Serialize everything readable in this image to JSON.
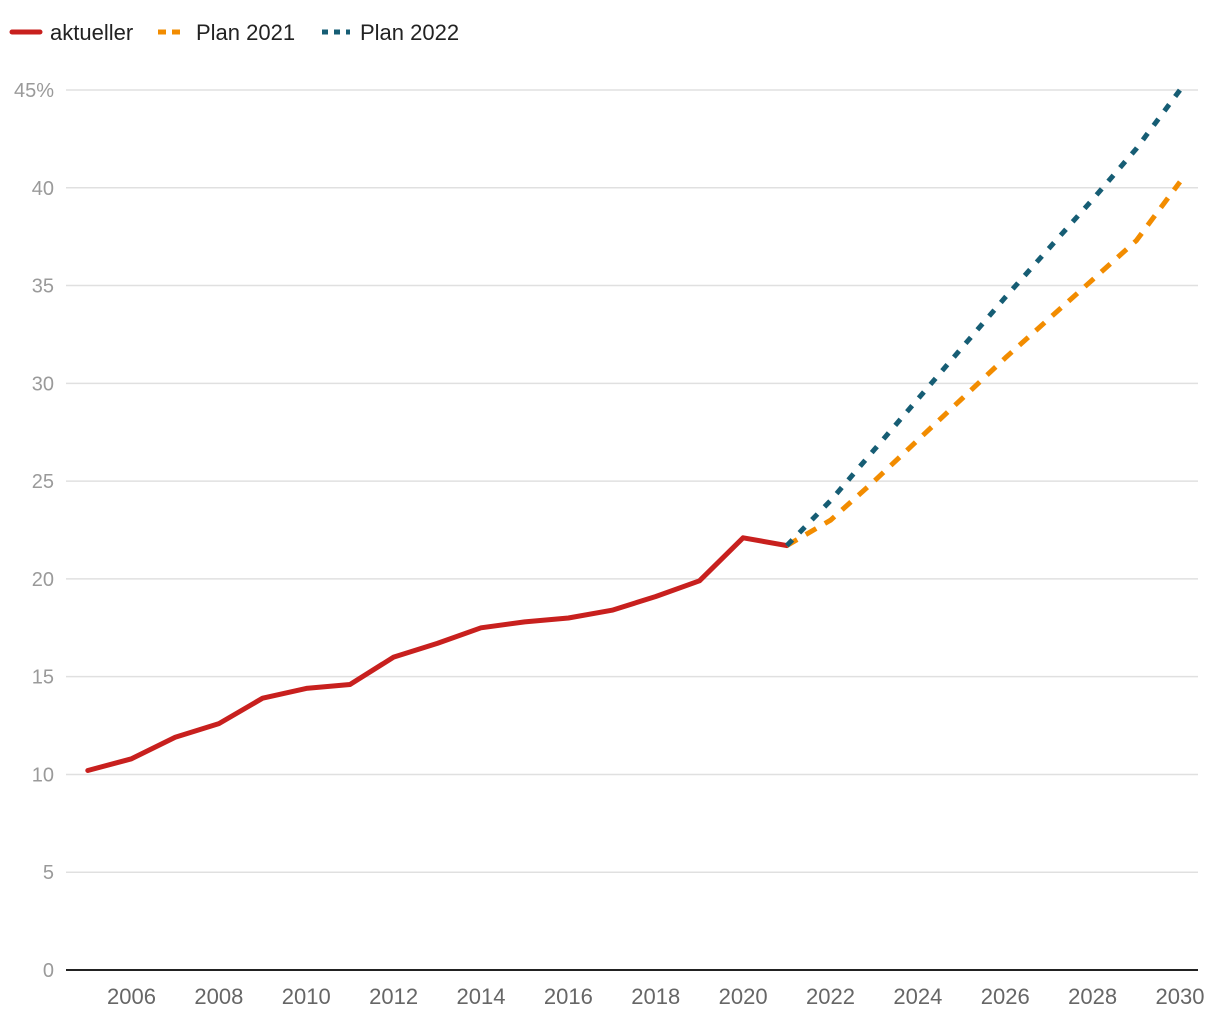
{
  "chart_data": {
    "type": "line",
    "ylim": [
      0,
      45
    ],
    "xlim": [
      2005,
      2030
    ],
    "y_ticks": [
      {
        "value": 0,
        "label": "0"
      },
      {
        "value": 5,
        "label": "5"
      },
      {
        "value": 10,
        "label": "10"
      },
      {
        "value": 15,
        "label": "15"
      },
      {
        "value": 20,
        "label": "20"
      },
      {
        "value": 25,
        "label": "25"
      },
      {
        "value": 30,
        "label": "30"
      },
      {
        "value": 35,
        "label": "35"
      },
      {
        "value": 40,
        "label": "40"
      },
      {
        "value": 45,
        "label": "45%"
      }
    ],
    "x_ticks": [
      {
        "value": 2006,
        "label": "2006"
      },
      {
        "value": 2008,
        "label": "2008"
      },
      {
        "value": 2010,
        "label": "2010"
      },
      {
        "value": 2012,
        "label": "2012"
      },
      {
        "value": 2014,
        "label": "2014"
      },
      {
        "value": 2016,
        "label": "2016"
      },
      {
        "value": 2018,
        "label": "2018"
      },
      {
        "value": 2020,
        "label": "2020"
      },
      {
        "value": 2022,
        "label": "2022"
      },
      {
        "value": 2024,
        "label": "2024"
      },
      {
        "value": 2026,
        "label": "2026"
      },
      {
        "value": 2028,
        "label": "2028"
      },
      {
        "value": 2030,
        "label": "2030"
      }
    ],
    "grid": true,
    "legend_position": "top-left",
    "series": [
      {
        "name": "aktueller",
        "color": "#c8201e",
        "style": "solid",
        "x": [
          2005,
          2006,
          2007,
          2008,
          2009,
          2010,
          2011,
          2012,
          2013,
          2014,
          2015,
          2016,
          2017,
          2018,
          2019,
          2020,
          2021
        ],
        "y": [
          10.2,
          10.8,
          11.9,
          12.6,
          13.9,
          14.4,
          14.6,
          16.0,
          16.7,
          17.5,
          17.8,
          18.0,
          18.4,
          19.1,
          19.9,
          22.1,
          21.7
        ]
      },
      {
        "name": "Plan 2021",
        "color": "#f28c00",
        "style": "dashed",
        "x": [
          2021,
          2022,
          2023,
          2024,
          2025,
          2026,
          2027,
          2028,
          2029,
          2030
        ],
        "y": [
          21.7,
          23.0,
          25.0,
          27.1,
          29.2,
          31.3,
          33.3,
          35.3,
          37.3,
          40.3
        ]
      },
      {
        "name": "Plan 2022",
        "color": "#165d74",
        "style": "dotted",
        "x": [
          2021,
          2022,
          2023,
          2024,
          2025,
          2026,
          2027,
          2028,
          2029,
          2030
        ],
        "y": [
          21.7,
          24.0,
          26.6,
          29.2,
          31.8,
          34.4,
          36.9,
          39.4,
          42.0,
          45.0
        ]
      }
    ]
  }
}
